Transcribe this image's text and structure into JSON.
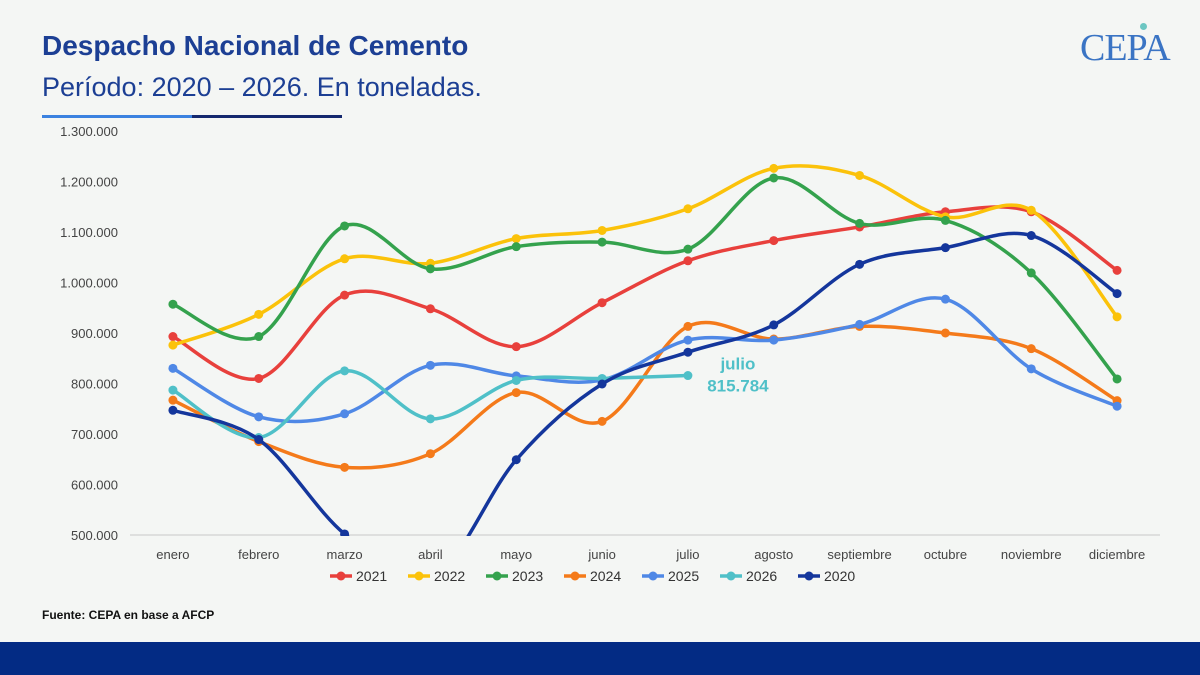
{
  "header": {
    "title": "Despacho Nacional de Cemento",
    "subtitle": "Período: 2020 – 2026. En toneladas."
  },
  "logo": {
    "text": "CEPA"
  },
  "source": "Fuente: CEPA en base a AFCP",
  "chart_data": {
    "type": "line",
    "title": "",
    "xlabel": "",
    "ylabel": "",
    "ylim": [
      500000,
      1300000
    ],
    "y_ticks": [
      "500.000",
      "600.000",
      "700.000",
      "800.000",
      "900.000",
      "1.000.000",
      "1.100.000",
      "1.200.000",
      "1.300.000"
    ],
    "categories": [
      "enero",
      "febrero",
      "marzo",
      "abril",
      "mayo",
      "junio",
      "julio",
      "agosto",
      "septiembre",
      "octubre",
      "noviembre",
      "diciembre"
    ],
    "legend_position": "bottom",
    "series": [
      {
        "name": "2021",
        "color": "#e8403c",
        "values": [
          893000,
          810000,
          975000,
          948000,
          873000,
          960000,
          1043000,
          1083000,
          1110000,
          1140000,
          1140000,
          1024000
        ]
      },
      {
        "name": "2022",
        "color": "#fbc20a",
        "values": [
          876000,
          937000,
          1047000,
          1038000,
          1087000,
          1103000,
          1146000,
          1226000,
          1212000,
          1130000,
          1143000,
          932000
        ]
      },
      {
        "name": "2023",
        "color": "#34a24d",
        "values": [
          957000,
          893000,
          1112000,
          1027000,
          1071000,
          1080000,
          1066000,
          1207000,
          1117000,
          1123000,
          1019000,
          809000
        ]
      },
      {
        "name": "2024",
        "color": "#f47a1a",
        "values": [
          767000,
          685000,
          634000,
          661000,
          782000,
          725000,
          913000,
          888000,
          913000,
          900000,
          869000,
          766000
        ]
      },
      {
        "name": "2025",
        "color": "#4f88e6",
        "values": [
          830000,
          734000,
          740000,
          836000,
          815000,
          807000,
          886000,
          886000,
          917000,
          967000,
          829000,
          755000
        ]
      },
      {
        "name": "2026",
        "color": "#4fc0c8",
        "values": [
          787000,
          693000,
          825000,
          730000,
          806000,
          810000,
          815784,
          null,
          null,
          null,
          null,
          null
        ]
      },
      {
        "name": "2020",
        "color": "#14369c",
        "values": [
          747000,
          689000,
          502000,
          410000,
          649000,
          799000,
          862000,
          916000,
          1036000,
          1069000,
          1093000,
          978000
        ]
      }
    ],
    "annotation": {
      "series": "2026",
      "label": "julio",
      "value_label": "815.784"
    }
  }
}
